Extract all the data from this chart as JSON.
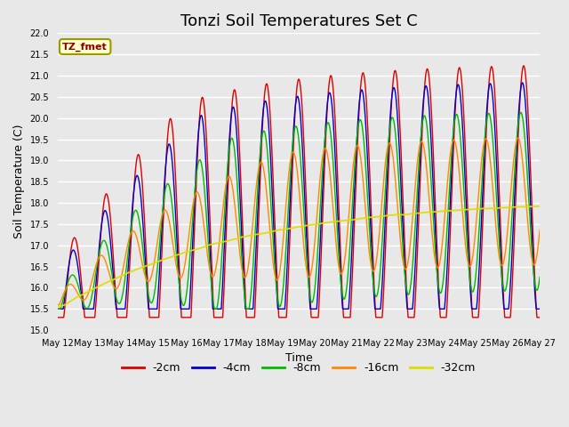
{
  "title": "Tonzi Soil Temperatures Set C",
  "xlabel": "Time",
  "ylabel": "Soil Temperature (C)",
  "ylim": [
    15.0,
    22.0
  ],
  "yticks": [
    15.0,
    15.5,
    16.0,
    16.5,
    17.0,
    17.5,
    18.0,
    18.5,
    19.0,
    19.5,
    20.0,
    20.5,
    21.0,
    21.5,
    22.0
  ],
  "series_labels": [
    "-2cm",
    "-4cm",
    "-8cm",
    "-16cm",
    "-32cm"
  ],
  "series_colors": [
    "#dd0000",
    "#0000cc",
    "#00bb00",
    "#ff8800",
    "#dddd00"
  ],
  "series_linewidths": [
    1.0,
    1.0,
    1.0,
    1.0,
    1.2
  ],
  "annotation_label": "TZ_fmet",
  "background_color": "#e8e8e8",
  "grid_color": "#ffffff",
  "title_fontsize": 13,
  "axis_fontsize": 9,
  "legend_fontsize": 9,
  "n_points": 3000,
  "t_start": 0,
  "t_end": 15,
  "x_tick_labels": [
    "May 12",
    "May 13",
    "May 14",
    "May 15",
    "May 16",
    "May 17",
    "May 18",
    "May 19",
    "May 20",
    "May 21",
    "May 22",
    "May 23",
    "May 24",
    "May 25",
    "May 26",
    "May 27"
  ],
  "x_tick_positions": [
    0,
    1,
    2,
    3,
    4,
    5,
    6,
    7,
    8,
    9,
    10,
    11,
    12,
    13,
    14,
    15
  ]
}
